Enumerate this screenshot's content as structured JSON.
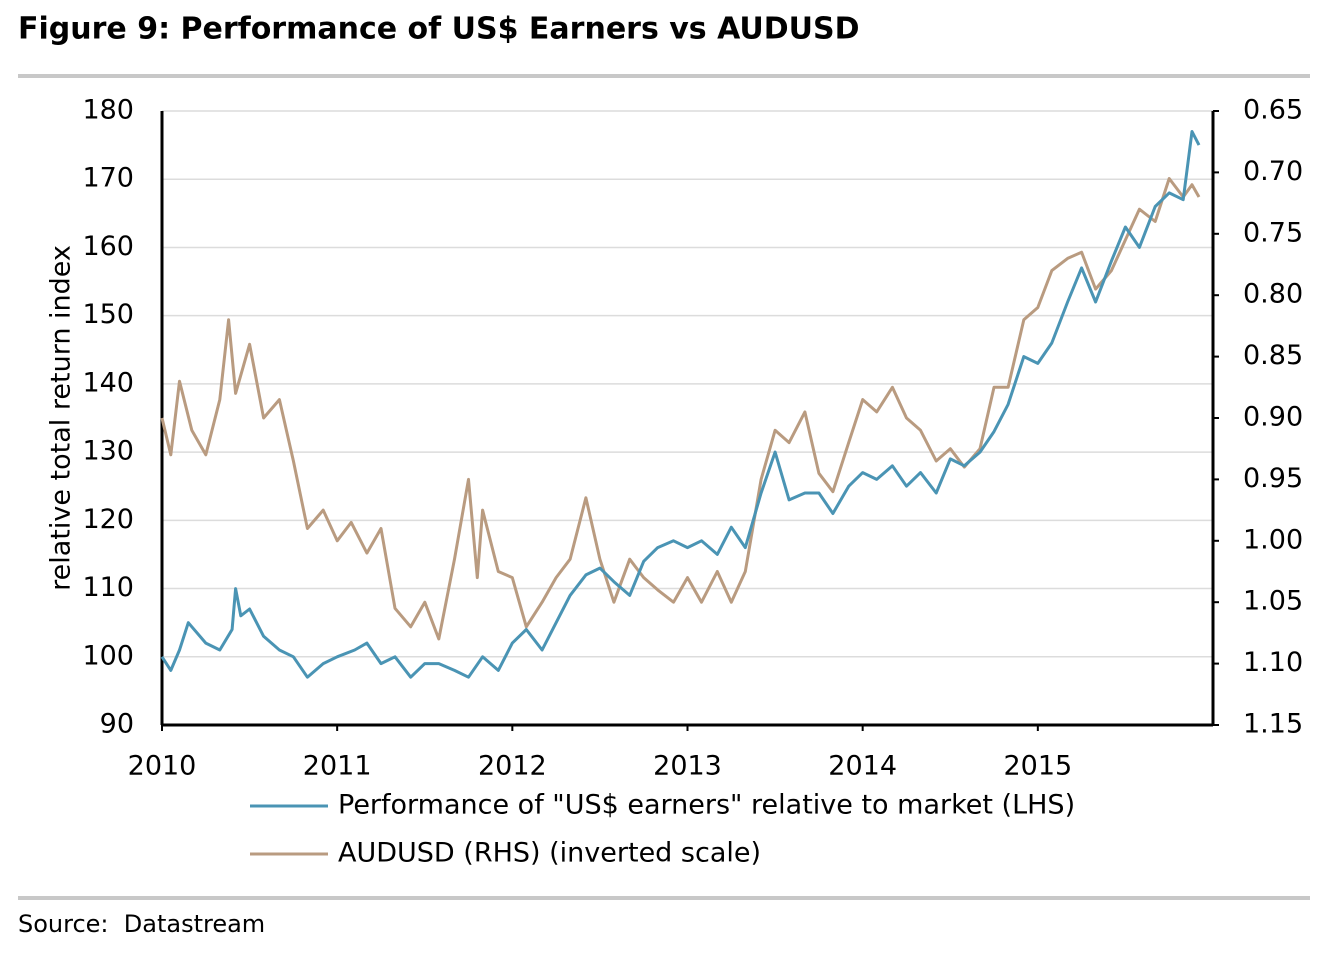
{
  "chart_data": {
    "type": "line",
    "title": "Figure 9: Performance of US$ Earners vs AUDUSD",
    "y_label": "relative total return index",
    "footer": "Source:  Datastream",
    "xlim": [
      2010,
      2016
    ],
    "xticks": [
      2010,
      2011,
      2012,
      2013,
      2014,
      2015
    ],
    "ylim": [
      90,
      180
    ],
    "yticks": [
      90,
      100,
      110,
      120,
      130,
      140,
      150,
      160,
      170,
      180
    ],
    "y2lim": [
      1.15,
      0.65
    ],
    "y2ticks": [
      0.65,
      {
        "value": 0.7,
        "label": "0.70"
      },
      0.75,
      {
        "value": 0.8,
        "label": "0.80"
      },
      0.85,
      {
        "value": 0.9,
        "label": "0.90"
      },
      0.95,
      {
        "value": 1,
        "label": "1.00"
      },
      1.05,
      {
        "value": 1.1,
        "label": "1.10"
      },
      1.15
    ],
    "grid": true,
    "series": [
      {
        "name": "Performance of \"US$ earners\" relative to market (LHS)",
        "color": "#4a94b4",
        "x": [
          2010.0,
          2010.05,
          2010.1,
          2010.15,
          2010.25,
          2010.33,
          2010.4,
          2010.42,
          2010.45,
          2010.5,
          2010.58,
          2010.67,
          2010.75,
          2010.83,
          2010.92,
          2011.0,
          2011.1,
          2011.17,
          2011.25,
          2011.33,
          2011.42,
          2011.5,
          2011.58,
          2011.67,
          2011.75,
          2011.83,
          2011.92,
          2012.0,
          2012.08,
          2012.17,
          2012.25,
          2012.33,
          2012.42,
          2012.5,
          2012.58,
          2012.67,
          2012.75,
          2012.83,
          2012.92,
          2013.0,
          2013.08,
          2013.17,
          2013.25,
          2013.33,
          2013.42,
          2013.5,
          2013.58,
          2013.67,
          2013.75,
          2013.83,
          2013.92,
          2014.0,
          2014.08,
          2014.17,
          2014.25,
          2014.33,
          2014.42,
          2014.5,
          2014.58,
          2014.67,
          2014.75,
          2014.83,
          2014.92,
          2015.0,
          2015.08,
          2015.17,
          2015.25,
          2015.33,
          2015.42,
          2015.5,
          2015.58,
          2015.67,
          2015.75,
          2015.83,
          2015.88,
          2015.92
        ],
        "values": [
          100,
          98,
          101,
          105,
          102,
          101,
          104,
          110,
          106,
          107,
          103,
          101,
          100,
          97,
          99,
          100,
          101,
          102,
          99,
          100,
          97,
          99,
          99,
          98,
          97,
          100,
          98,
          102,
          104,
          101,
          105,
          109,
          112,
          113,
          111,
          109,
          114,
          116,
          117,
          116,
          117,
          115,
          119,
          116,
          124,
          130,
          123,
          124,
          124,
          121,
          125,
          127,
          126,
          128,
          125,
          127,
          124,
          129,
          128,
          130,
          133,
          137,
          144,
          143,
          146,
          152,
          157,
          152,
          158,
          163,
          160,
          166,
          168,
          167,
          177,
          175
        ]
      },
      {
        "name": "AUDUSD (RHS) (inverted scale)",
        "color": "#b99b80",
        "axis": "y2",
        "x": [
          2010.0,
          2010.05,
          2010.1,
          2010.17,
          2010.25,
          2010.33,
          2010.38,
          2010.42,
          2010.5,
          2010.58,
          2010.67,
          2010.75,
          2010.83,
          2010.92,
          2011.0,
          2011.08,
          2011.17,
          2011.25,
          2011.33,
          2011.42,
          2011.5,
          2011.58,
          2011.67,
          2011.75,
          2011.8,
          2011.83,
          2011.92,
          2012.0,
          2012.08,
          2012.17,
          2012.25,
          2012.33,
          2012.42,
          2012.5,
          2012.58,
          2012.67,
          2012.75,
          2012.83,
          2012.92,
          2013.0,
          2013.08,
          2013.17,
          2013.25,
          2013.33,
          2013.42,
          2013.5,
          2013.58,
          2013.67,
          2013.75,
          2013.83,
          2013.92,
          2014.0,
          2014.08,
          2014.17,
          2014.25,
          2014.33,
          2014.42,
          2014.5,
          2014.58,
          2014.67,
          2014.75,
          2014.83,
          2014.92,
          2015.0,
          2015.08,
          2015.17,
          2015.25,
          2015.33,
          2015.42,
          2015.5,
          2015.58,
          2015.67,
          2015.75,
          2015.83,
          2015.88,
          2015.92
        ],
        "values": [
          0.9,
          0.93,
          0.87,
          0.91,
          0.93,
          0.885,
          0.82,
          0.88,
          0.84,
          0.9,
          0.885,
          0.935,
          0.99,
          0.975,
          1.0,
          0.985,
          1.01,
          0.99,
          1.055,
          1.07,
          1.05,
          1.08,
          1.015,
          0.95,
          1.03,
          0.975,
          1.025,
          1.03,
          1.07,
          1.05,
          1.03,
          1.015,
          0.965,
          1.015,
          1.05,
          1.015,
          1.03,
          1.04,
          1.05,
          1.03,
          1.05,
          1.025,
          1.05,
          1.025,
          0.95,
          0.91,
          0.92,
          0.895,
          0.945,
          0.96,
          0.92,
          0.885,
          0.895,
          0.875,
          0.9,
          0.91,
          0.935,
          0.925,
          0.94,
          0.925,
          0.875,
          0.875,
          0.82,
          0.81,
          0.78,
          0.77,
          0.765,
          0.795,
          0.78,
          0.755,
          0.73,
          0.74,
          0.705,
          0.72,
          0.71,
          0.72
        ]
      }
    ]
  }
}
